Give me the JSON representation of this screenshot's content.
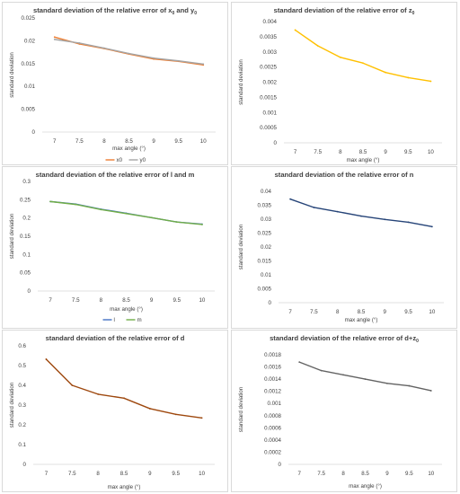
{
  "chart_data": [
    {
      "type": "line",
      "title": "standard deviation of the relative error of x",
      "title_parts": [
        "standard deviation of the relative error of x",
        "0",
        " and y",
        "0"
      ],
      "xlabel": "max angle (°)",
      "ylabel": "standard deviation",
      "x": [
        "7",
        "7.5",
        "8",
        "8.5",
        "9",
        "9.5",
        "10"
      ],
      "ylim": [
        0,
        0.025
      ],
      "yticks": [
        "0",
        "0.005",
        "0.01",
        "0.015",
        "0.02",
        "0.025"
      ],
      "grid": false,
      "legend": "bottom",
      "series": [
        {
          "name": "x0",
          "color": "#ed7d31",
          "values": [
            0.0208,
            0.0193,
            0.0183,
            0.0171,
            0.016,
            0.0155,
            0.0147
          ]
        },
        {
          "name": "y0",
          "color": "#a5a5a5",
          "values": [
            0.0203,
            0.0195,
            0.0184,
            0.0172,
            0.0162,
            0.0156,
            0.0149
          ]
        }
      ]
    },
    {
      "type": "line",
      "title": "standard deviation of the relative error of z",
      "title_parts": [
        "standard deviation of the relative error of z",
        "0"
      ],
      "xlabel": "max angle (°)",
      "ylabel": "standard deviation",
      "x": [
        "7",
        "7.5",
        "8",
        "8.5",
        "9",
        "9.5",
        "10"
      ],
      "ylim": [
        0,
        0.004
      ],
      "yticks": [
        "0",
        "0.0005",
        "0.001",
        "0.0015",
        "0.002",
        "0.0025",
        "0.003",
        "0.0035",
        "0.004"
      ],
      "grid": false,
      "series": [
        {
          "color": "#ffc000",
          "values": [
            0.00372,
            0.0032,
            0.00282,
            0.00263,
            0.00232,
            0.00215,
            0.00203
          ]
        }
      ]
    },
    {
      "type": "line",
      "title": "standard deviation of the relative error of l and m",
      "xlabel": "max angle (°)",
      "ylabel": "standard deviation",
      "x": [
        "7",
        "7.5",
        "8",
        "8.5",
        "9",
        "9.5",
        "10"
      ],
      "ylim": [
        0,
        0.3
      ],
      "yticks": [
        "0",
        "0.05",
        "0.1",
        "0.15",
        "0.2",
        "0.25",
        "0.3"
      ],
      "grid": false,
      "legend": "bottom",
      "series": [
        {
          "name": "l",
          "color": "#4472c4",
          "values": [
            0.245,
            0.238,
            0.224,
            0.213,
            0.201,
            0.189,
            0.183
          ]
        },
        {
          "name": "m",
          "color": "#70ad47",
          "values": [
            0.245,
            0.237,
            0.223,
            0.212,
            0.201,
            0.189,
            0.182
          ]
        }
      ]
    },
    {
      "type": "line",
      "title": "standard deviation of the relative error of n",
      "xlabel": "max angle (°)",
      "ylabel": "standard deviation",
      "x": [
        "7",
        "7.5",
        "8",
        "8.5",
        "9",
        "9.5",
        "10"
      ],
      "ylim": [
        0,
        0.04
      ],
      "yticks": [
        "0",
        "0.005",
        "0.01",
        "0.015",
        "0.02",
        "0.025",
        "0.03",
        "0.035",
        "0.04"
      ],
      "grid": false,
      "series": [
        {
          "color": "#264478",
          "values": [
            0.0372,
            0.0342,
            0.0327,
            0.0311,
            0.0299,
            0.0289,
            0.0273
          ]
        }
      ]
    },
    {
      "type": "line",
      "title": "standard deviation of the relative error of d",
      "xlabel": "max angle (°)",
      "ylabel": "standard deviation",
      "x": [
        "7",
        "7.5",
        "8",
        "8.5",
        "9",
        "9.5",
        "10"
      ],
      "ylim": [
        0,
        0.6
      ],
      "yticks": [
        "0",
        "0.1",
        "0.2",
        "0.3",
        "0.4",
        "0.5",
        "0.6"
      ],
      "grid": false,
      "series": [
        {
          "color": "#9e480e",
          "values": [
            0.532,
            0.4,
            0.355,
            0.335,
            0.282,
            0.253,
            0.235
          ]
        }
      ]
    },
    {
      "type": "line",
      "title": "standard deviation of the relative error of d+z",
      "title_parts": [
        "standard deviation of the relative error of d+z",
        "0"
      ],
      "xlabel": "max angle (°)",
      "ylabel": "standard deviation",
      "x": [
        "7",
        "7.5",
        "8",
        "8.5",
        "9",
        "9.5",
        "10"
      ],
      "ylim": [
        0,
        0.0018
      ],
      "yticks": [
        "0",
        "0.0002",
        "0.0004",
        "0.0006",
        "0.0008",
        "0.001",
        "0.0012",
        "0.0014",
        "0.0016",
        "0.0018"
      ],
      "grid": false,
      "series": [
        {
          "color": "#636363",
          "values": [
            0.00168,
            0.00154,
            0.00147,
            0.0014,
            0.00133,
            0.00129,
            0.00121
          ]
        }
      ]
    }
  ]
}
